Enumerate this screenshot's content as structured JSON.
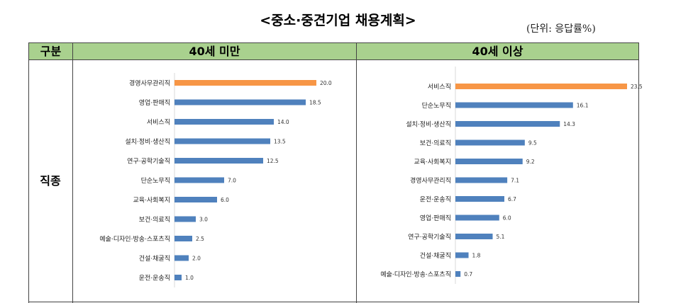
{
  "title": "<중소·중견기업 채용계획>",
  "unit": "(단위: 응답률%)",
  "table": {
    "col_header": "구분",
    "row_label": "직종"
  },
  "colors": {
    "highlight": "#f79646",
    "bar": "#4f81bd",
    "header_bg": "#a9d18e"
  },
  "chart_data": [
    {
      "type": "bar",
      "orientation": "horizontal",
      "title": "40세 미만",
      "categories": [
        "경영사무관리직",
        "영업·판매직",
        "서비스직",
        "설치·정비·생산직",
        "연구·공학기술직",
        "단순노무직",
        "교육·사회복지",
        "보건·의료직",
        "예술·디자인·방송·스포츠직",
        "건설·채굴직",
        "운전·운송직"
      ],
      "values": [
        20.0,
        18.5,
        14.0,
        13.5,
        12.5,
        7.0,
        6.0,
        3.0,
        2.5,
        2.0,
        1.0
      ],
      "value_labels": [
        "20.0",
        "18.5",
        "14.0",
        "13.5",
        "12.5",
        "7.0",
        "6.0",
        "3.0",
        "2.5",
        "2.0",
        "1.0"
      ],
      "highlight_index": 0,
      "xlim": [
        0,
        20
      ]
    },
    {
      "type": "bar",
      "orientation": "horizontal",
      "title": "40세 이상",
      "categories": [
        "서비스직",
        "단순노무직",
        "설치·정비·생산직",
        "보건·의료직",
        "교육·사회복지",
        "경영사무관리직",
        "운전·운송직",
        "영업·판매직",
        "연구·공학기술직",
        "건설·채굴직",
        "예술·디자인·방송·스포츠직"
      ],
      "values": [
        23.5,
        16.1,
        14.3,
        9.5,
        9.2,
        7.1,
        6.7,
        6.0,
        5.1,
        1.8,
        0.7
      ],
      "value_labels": [
        "23.5",
        "16.1",
        "14.3",
        "9.5",
        "9.2",
        "7.1",
        "6.7",
        "6.0",
        "5.1",
        "1.8",
        "0.7"
      ],
      "highlight_index": 0,
      "xlim": [
        0,
        23.5
      ]
    }
  ]
}
